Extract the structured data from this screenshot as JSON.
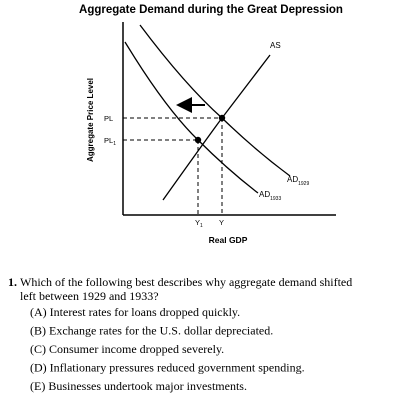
{
  "diagram": {
    "title": "Aggregate Demand during the Great Depression",
    "y_axis_label": "Aggregate Price Level",
    "x_axis_label": "Real GDP",
    "curves": {
      "as": {
        "text": "AS"
      },
      "ad_1929": {
        "text": "AD",
        "sub": "1929"
      },
      "ad_1933": {
        "text": "AD",
        "sub": "1933"
      }
    },
    "price_levels": [
      {
        "text": "PL"
      },
      {
        "text": "PL",
        "sub": "1"
      }
    ],
    "outputs": [
      {
        "text": "Y",
        "sub": "1"
      },
      {
        "text": "Y"
      }
    ]
  },
  "question": {
    "number": "1.",
    "lines": [
      "Which of the following best describes why aggregate demand shifted",
      "left between 1929 and 1933?"
    ],
    "options": [
      "(A) Interest rates for loans dropped quickly.",
      "(B) Exchange rates for the U.S. dollar depreciated.",
      "(C) Consumer income dropped severely.",
      "(D) Inflationary pressures reduced government spending.",
      "(E) Businesses undertook major investments."
    ]
  }
}
